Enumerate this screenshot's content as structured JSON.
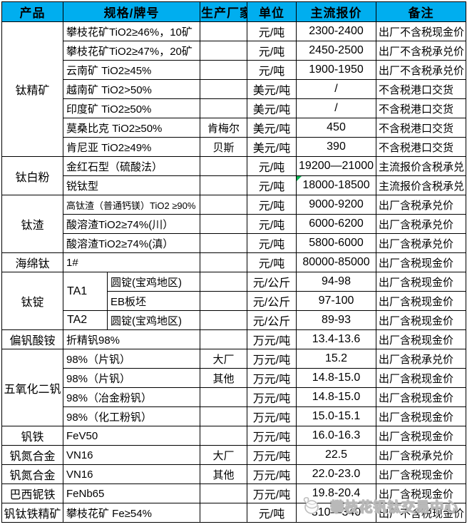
{
  "colors": {
    "header_bg": "#00AEEF",
    "header_text": "#ffffff",
    "grid_border": "#000000",
    "flag_green": "#00B050",
    "watermark_gray": "#b9b9b9"
  },
  "watermark": {
    "icon": "exchange-logo-icon",
    "text": "攀枝花钒钛交易中心"
  },
  "table": {
    "header": [
      "产品",
      "规格/牌号",
      "生产厂家",
      "单位",
      "主流报价",
      "备注"
    ],
    "rows": [
      [
        {
          "t": "钛精矿",
          "rs": 7,
          "ty": "product"
        },
        {
          "t": "攀枝花矿TiO2≥46%，10矿",
          "cs": 2,
          "ty": "spec"
        },
        {
          "t": "",
          "ty": "maker"
        },
        {
          "t": "元/吨",
          "ty": "unit"
        },
        {
          "t": "2300-2400",
          "ty": "price"
        },
        {
          "t": "出厂不含税现金价",
          "ty": "note"
        }
      ],
      [
        {
          "t": "攀枝花矿TiO2≥47%，20矿",
          "cs": 2,
          "ty": "spec"
        },
        {
          "t": "",
          "ty": "maker"
        },
        {
          "t": "元/吨",
          "ty": "unit"
        },
        {
          "t": "2450-2500",
          "ty": "price"
        },
        {
          "t": "出厂不含税承兑价",
          "ty": "note"
        }
      ],
      [
        {
          "t": "云南矿 TiO2≥45%",
          "cs": 2,
          "ty": "spec"
        },
        {
          "t": "",
          "ty": "maker"
        },
        {
          "t": "元/吨",
          "ty": "unit"
        },
        {
          "t": "1900-1950",
          "ty": "price"
        },
        {
          "t": "出厂不含税承兑价",
          "ty": "note"
        }
      ],
      [
        {
          "t": "越南矿 TiO2>50%",
          "cs": 2,
          "ty": "spec"
        },
        {
          "t": "",
          "ty": "maker"
        },
        {
          "t": "美元/吨",
          "ty": "unit"
        },
        {
          "t": "/",
          "ty": "price"
        },
        {
          "t": "不含税港口交货",
          "ty": "note"
        }
      ],
      [
        {
          "t": "印度矿 TiO2≥50%",
          "cs": 2,
          "ty": "spec"
        },
        {
          "t": "",
          "ty": "maker"
        },
        {
          "t": "美元/吨",
          "ty": "unit"
        },
        {
          "t": "/",
          "ty": "price"
        },
        {
          "t": "不含税港口交货",
          "ty": "note"
        }
      ],
      [
        {
          "t": "莫桑比克 TiO2≥50%",
          "cs": 2,
          "ty": "spec"
        },
        {
          "t": "肯梅尔",
          "ty": "maker"
        },
        {
          "t": "美元/吨",
          "ty": "unit"
        },
        {
          "t": "450",
          "ty": "price"
        },
        {
          "t": "不含税港口交货",
          "ty": "note"
        }
      ],
      [
        {
          "t": "肯尼亚 TiO2≥49%",
          "cs": 2,
          "ty": "spec"
        },
        {
          "t": "贝斯",
          "ty": "maker"
        },
        {
          "t": "美元/吨",
          "ty": "unit"
        },
        {
          "t": "390",
          "ty": "price"
        },
        {
          "t": "不含税港口交货",
          "ty": "note"
        }
      ],
      [
        {
          "t": "钛白粉",
          "rs": 2,
          "ty": "product"
        },
        {
          "t": "金红石型（硫酸法）",
          "cs": 2,
          "ty": "spec"
        },
        {
          "t": "",
          "ty": "maker"
        },
        {
          "t": "元/吨",
          "ty": "unit"
        },
        {
          "t": "19200—21000",
          "ty": "price"
        },
        {
          "t": "主流报价含税承兑",
          "ty": "note"
        }
      ],
      [
        {
          "t": "锐钛型",
          "cs": 2,
          "ty": "spec"
        },
        {
          "t": "",
          "ty": "maker"
        },
        {
          "t": "元/吨",
          "ty": "unit"
        },
        {
          "t": "18000-18500",
          "ty": "price",
          "flag": true
        },
        {
          "t": "主流报价含税承兑",
          "ty": "note"
        }
      ],
      [
        {
          "t": "钛渣",
          "rs": 3,
          "ty": "product"
        },
        {
          "t": "高钛渣（普通钙镁）TiO2 ≥90%",
          "cs": 2,
          "ty": "spec",
          "small": true
        },
        {
          "t": "",
          "ty": "maker"
        },
        {
          "t": "元/吨",
          "ty": "unit"
        },
        {
          "t": "9000-9200",
          "ty": "price"
        },
        {
          "t": "出厂含税承兑价",
          "ty": "note"
        }
      ],
      [
        {
          "t": "酸溶渣TiO2≥74%(川）",
          "cs": 2,
          "ty": "spec"
        },
        {
          "t": "",
          "ty": "maker"
        },
        {
          "t": "元/吨",
          "ty": "unit"
        },
        {
          "t": "6000-6200",
          "ty": "price"
        },
        {
          "t": "出厂含税承兑价",
          "ty": "note"
        }
      ],
      [
        {
          "t": "酸溶渣TiO2≥74%(滇）",
          "cs": 2,
          "ty": "spec"
        },
        {
          "t": "",
          "ty": "maker"
        },
        {
          "t": "元/吨",
          "ty": "unit"
        },
        {
          "t": "5800-6000",
          "ty": "price"
        },
        {
          "t": "出厂含税承兑价",
          "ty": "note"
        }
      ],
      [
        {
          "t": "海绵钛",
          "ty": "product"
        },
        {
          "t": "1#",
          "cs": 2,
          "ty": "spec"
        },
        {
          "t": "",
          "ty": "maker"
        },
        {
          "t": "元/吨",
          "ty": "unit"
        },
        {
          "t": "80000-85000",
          "ty": "price"
        },
        {
          "t": "出厂含税现金价",
          "ty": "note"
        }
      ],
      [
        {
          "t": "钛锭",
          "rs": 3,
          "ty": "product"
        },
        {
          "t": "TA1",
          "rs": 2,
          "ty": "sub"
        },
        {
          "t": "圆锭(宝鸡地区)",
          "ty": "spec"
        },
        {
          "t": "",
          "ty": "maker"
        },
        {
          "t": "元/公斤",
          "ty": "unit"
        },
        {
          "t": "94-98",
          "ty": "price"
        },
        {
          "t": "出厂含税现金价",
          "ty": "note"
        }
      ],
      [
        {
          "t": "EB板坯",
          "ty": "spec"
        },
        {
          "t": "",
          "ty": "maker"
        },
        {
          "t": "元/公斤",
          "ty": "unit"
        },
        {
          "t": "97-100",
          "ty": "price"
        },
        {
          "t": "出厂含税现金价",
          "ty": "note"
        }
      ],
      [
        {
          "t": "TA2",
          "ty": "sub"
        },
        {
          "t": "圆锭(宝鸡地区)",
          "ty": "spec"
        },
        {
          "t": "",
          "ty": "maker"
        },
        {
          "t": "元/公斤",
          "ty": "unit"
        },
        {
          "t": "89-93",
          "ty": "price"
        },
        {
          "t": "出厂含税现金价",
          "ty": "note"
        }
      ],
      [
        {
          "t": "偏钒酸铵",
          "ty": "product"
        },
        {
          "t": "折精钒98%",
          "cs": 2,
          "ty": "spec"
        },
        {
          "t": "",
          "ty": "maker"
        },
        {
          "t": "万元/吨",
          "ty": "unit"
        },
        {
          "t": "13.4-13.6",
          "ty": "price"
        },
        {
          "t": "出厂含税现金价",
          "ty": "note"
        }
      ],
      [
        {
          "t": "五氧化二钒",
          "rs": 4,
          "ty": "product"
        },
        {
          "t": "98%（片钒）",
          "cs": 2,
          "ty": "spec"
        },
        {
          "t": "大厂",
          "ty": "maker"
        },
        {
          "t": "万元/吨",
          "ty": "unit"
        },
        {
          "t": "15.2",
          "ty": "price"
        },
        {
          "t": "出厂含税承兑价",
          "ty": "note"
        }
      ],
      [
        {
          "t": "98%（片钒）",
          "cs": 2,
          "ty": "spec"
        },
        {
          "t": "其他",
          "ty": "maker"
        },
        {
          "t": "万元/吨",
          "ty": "unit"
        },
        {
          "t": "14.8-15.0",
          "ty": "price"
        },
        {
          "t": "出厂含税现金价",
          "ty": "note"
        }
      ],
      [
        {
          "t": "98%（冶金粉钒）",
          "cs": 2,
          "ty": "spec"
        },
        {
          "t": "",
          "ty": "maker"
        },
        {
          "t": "万元/吨",
          "ty": "unit"
        },
        {
          "t": "14.8-15.0",
          "ty": "price"
        },
        {
          "t": "出厂含税现金价",
          "ty": "note"
        }
      ],
      [
        {
          "t": "98%（化工粉钒）",
          "cs": 2,
          "ty": "spec"
        },
        {
          "t": "",
          "ty": "maker"
        },
        {
          "t": "万元/吨",
          "ty": "unit"
        },
        {
          "t": "15.0-15.1",
          "ty": "price"
        },
        {
          "t": "出厂含税现金价",
          "ty": "note"
        }
      ],
      [
        {
          "t": "钒铁",
          "ty": "product"
        },
        {
          "t": "FeV50",
          "cs": 2,
          "ty": "spec"
        },
        {
          "t": "",
          "ty": "maker"
        },
        {
          "t": "万元/吨",
          "ty": "unit"
        },
        {
          "t": "16.0-16.3",
          "ty": "price"
        },
        {
          "t": "出厂含税现金价",
          "ty": "note"
        }
      ],
      [
        {
          "t": "钒氮合金",
          "ty": "product"
        },
        {
          "t": "VN16",
          "cs": 2,
          "ty": "spec"
        },
        {
          "t": "大厂",
          "ty": "maker"
        },
        {
          "t": "万元/吨",
          "ty": "unit"
        },
        {
          "t": "22.5",
          "ty": "price"
        },
        {
          "t": "出厂含税承兑价",
          "ty": "note"
        }
      ],
      [
        {
          "t": "钒氮合金",
          "ty": "product"
        },
        {
          "t": "VN16",
          "cs": 2,
          "ty": "spec"
        },
        {
          "t": "其他",
          "ty": "maker"
        },
        {
          "t": "万元/吨",
          "ty": "unit"
        },
        {
          "t": "22.0-23.0",
          "ty": "price"
        },
        {
          "t": "出厂含税现金价",
          "ty": "note"
        }
      ],
      [
        {
          "t": "巴西铌铁",
          "ty": "product"
        },
        {
          "t": "FeNb65",
          "cs": 2,
          "ty": "spec"
        },
        {
          "t": "",
          "ty": "maker"
        },
        {
          "t": "万元/吨",
          "ty": "unit"
        },
        {
          "t": "19.8-20.4",
          "ty": "price"
        },
        {
          "t": "出厂含税现金价",
          "ty": "note"
        }
      ],
      [
        {
          "t": "钒钛铁精矿",
          "ty": "product"
        },
        {
          "t": "攀枝花矿 Fe≥54%",
          "cs": 2,
          "ty": "spec"
        },
        {
          "t": "",
          "ty": "maker"
        },
        {
          "t": "元/吨",
          "ty": "unit"
        },
        {
          "t": "310—340",
          "ty": "price"
        },
        {
          "t": "出厂不含税现金价",
          "ty": "note"
        }
      ]
    ]
  },
  "chart_data": {
    "type": "table",
    "columns": [
      "产品",
      "规格/牌号",
      "生产厂家",
      "单位",
      "主流报价",
      "备注"
    ],
    "rows": [
      [
        "钛精矿",
        "攀枝花矿TiO2≥46%，10矿",
        "",
        "元/吨",
        "2300-2400",
        "出厂不含税现金价"
      ],
      [
        "钛精矿",
        "攀枝花矿TiO2≥47%，20矿",
        "",
        "元/吨",
        "2450-2500",
        "出厂不含税承兑价"
      ],
      [
        "钛精矿",
        "云南矿 TiO2≥45%",
        "",
        "元/吨",
        "1900-1950",
        "出厂不含税承兑价"
      ],
      [
        "钛精矿",
        "越南矿 TiO2>50%",
        "",
        "美元/吨",
        "/",
        "不含税港口交货"
      ],
      [
        "钛精矿",
        "印度矿 TiO2≥50%",
        "",
        "美元/吨",
        "/",
        "不含税港口交货"
      ],
      [
        "钛精矿",
        "莫桑比克 TiO2≥50%",
        "肯梅尔",
        "美元/吨",
        "450",
        "不含税港口交货"
      ],
      [
        "钛精矿",
        "肯尼亚 TiO2≥49%",
        "贝斯",
        "美元/吨",
        "390",
        "不含税港口交货"
      ],
      [
        "钛白粉",
        "金红石型（硫酸法）",
        "",
        "元/吨",
        "19200—21000",
        "主流报价含税承兑"
      ],
      [
        "钛白粉",
        "锐钛型",
        "",
        "元/吨",
        "18000-18500",
        "主流报价含税承兑"
      ],
      [
        "钛渣",
        "高钛渣（普通钙镁）TiO2 ≥90%",
        "",
        "元/吨",
        "9000-9200",
        "出厂含税承兑价"
      ],
      [
        "钛渣",
        "酸溶渣TiO2≥74%(川）",
        "",
        "元/吨",
        "6000-6200",
        "出厂含税承兑价"
      ],
      [
        "钛渣",
        "酸溶渣TiO2≥74%(滇）",
        "",
        "元/吨",
        "5800-6000",
        "出厂含税承兑价"
      ],
      [
        "海绵钛",
        "1#",
        "",
        "元/吨",
        "80000-85000",
        "出厂含税现金价"
      ],
      [
        "钛锭",
        "TA1 圆锭(宝鸡地区)",
        "",
        "元/公斤",
        "94-98",
        "出厂含税现金价"
      ],
      [
        "钛锭",
        "TA1 EB板坯",
        "",
        "元/公斤",
        "97-100",
        "出厂含税现金价"
      ],
      [
        "钛锭",
        "TA2 圆锭(宝鸡地区)",
        "",
        "元/公斤",
        "89-93",
        "出厂含税现金价"
      ],
      [
        "偏钒酸铵",
        "折精钒98%",
        "",
        "万元/吨",
        "13.4-13.6",
        "出厂含税现金价"
      ],
      [
        "五氧化二钒",
        "98%（片钒）",
        "大厂",
        "万元/吨",
        "15.2",
        "出厂含税承兑价"
      ],
      [
        "五氧化二钒",
        "98%（片钒）",
        "其他",
        "万元/吨",
        "14.8-15.0",
        "出厂含税现金价"
      ],
      [
        "五氧化二钒",
        "98%（冶金粉钒）",
        "",
        "万元/吨",
        "14.8-15.0",
        "出厂含税现金价"
      ],
      [
        "五氧化二钒",
        "98%（化工粉钒）",
        "",
        "万元/吨",
        "15.0-15.1",
        "出厂含税现金价"
      ],
      [
        "钒铁",
        "FeV50",
        "",
        "万元/吨",
        "16.0-16.3",
        "出厂含税现金价"
      ],
      [
        "钒氮合金",
        "VN16",
        "大厂",
        "万元/吨",
        "22.5",
        "出厂含税承兑价"
      ],
      [
        "钒氮合金",
        "VN16",
        "其他",
        "万元/吨",
        "22.0-23.0",
        "出厂含税现金价"
      ],
      [
        "巴西铌铁",
        "FeNb65",
        "",
        "万元/吨",
        "19.8-20.4",
        "出厂含税现金价"
      ],
      [
        "钒钛铁精矿",
        "攀枝花矿 Fe≥54%",
        "",
        "元/吨",
        "310—340",
        "出厂不含税现金价"
      ]
    ]
  }
}
